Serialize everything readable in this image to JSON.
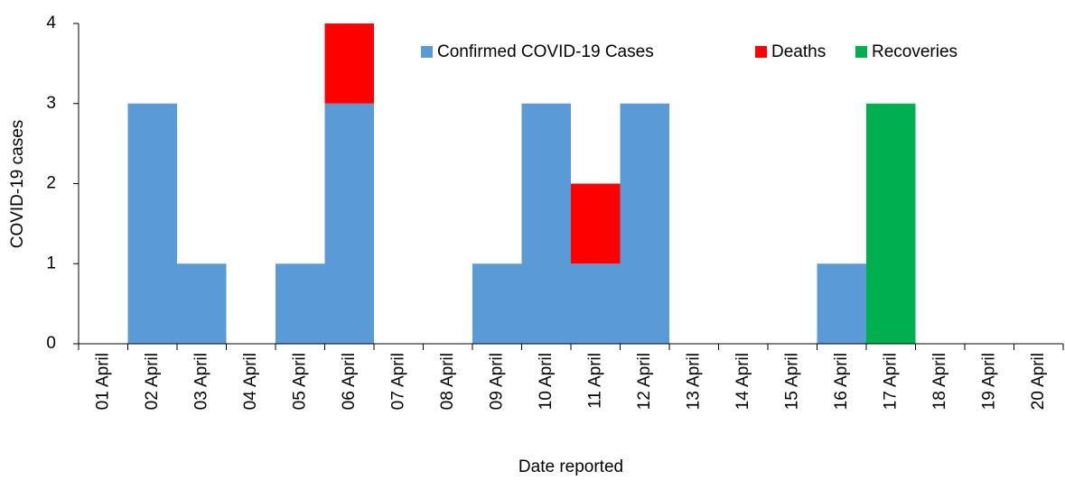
{
  "chart_data": {
    "type": "bar",
    "stacked": true,
    "x_label": "Date reported",
    "y_label": "COVID-19 cases",
    "categories": [
      "01 April",
      "02 April",
      "03 April",
      "04 April",
      "05 April",
      "06 April",
      "07 April",
      "08 April",
      "09 April",
      "10 April",
      "11 April",
      "12 April",
      "13 April",
      "14 April",
      "15 April",
      "16 April",
      "17 April",
      "18 April",
      "19 April",
      "20 April"
    ],
    "series": [
      {
        "name": "Confirmed COVID-19 Cases",
        "color": "#5b9bd5",
        "values": [
          0,
          3,
          1,
          0,
          1,
          3,
          0,
          0,
          1,
          3,
          1,
          3,
          0,
          0,
          0,
          1,
          0,
          0,
          0,
          0
        ]
      },
      {
        "name": "Deaths",
        "color": "#ff0000",
        "values": [
          0,
          0,
          0,
          0,
          0,
          1,
          0,
          0,
          0,
          0,
          1,
          0,
          0,
          0,
          0,
          0,
          0,
          0,
          0,
          0
        ]
      },
      {
        "name": "Recoveries",
        "color": "#00b050",
        "values": [
          0,
          0,
          0,
          0,
          0,
          0,
          0,
          0,
          0,
          0,
          0,
          0,
          0,
          0,
          0,
          0,
          3,
          0,
          0,
          0
        ]
      }
    ],
    "ylim": [
      0,
      4
    ],
    "yticks": [
      0,
      1,
      2,
      3,
      4
    ],
    "grid": false,
    "legend": "top"
  }
}
